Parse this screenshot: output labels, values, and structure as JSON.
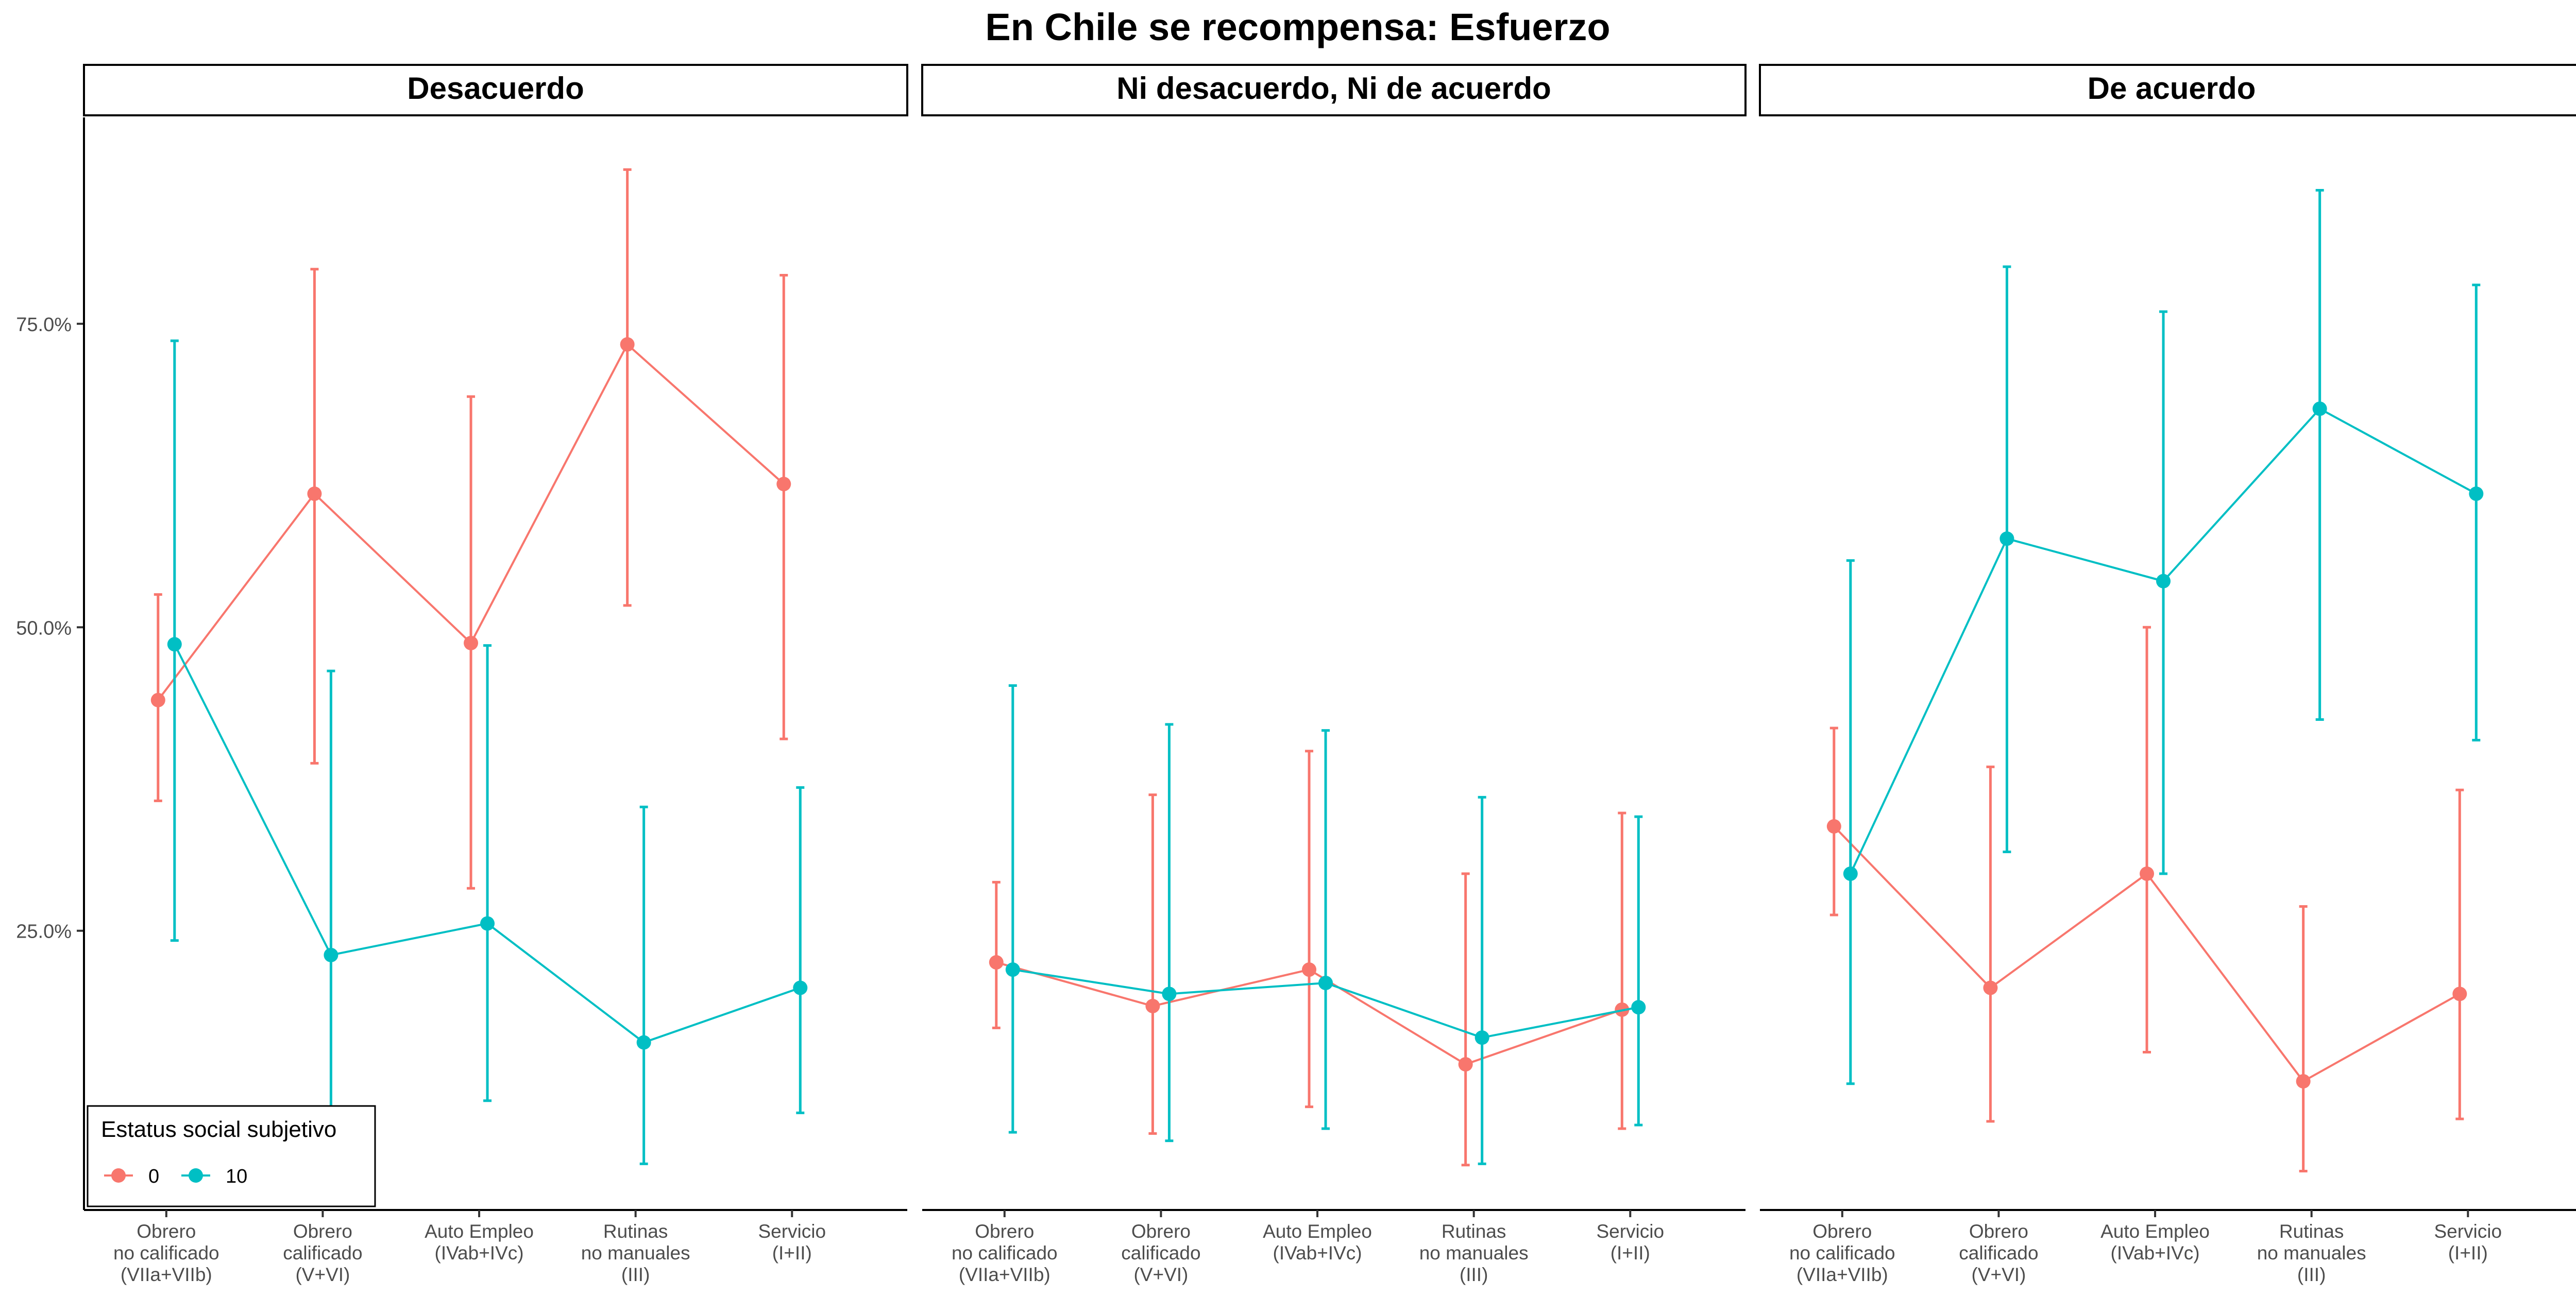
{
  "chart_data": {
    "type": "line",
    "title": "En Chile se recompensa: Esfuerzo",
    "facets": [
      "Desacuerdo",
      "Ni desacuerdo, Ni de acuerdo",
      "De acuerdo"
    ],
    "categories": [
      [
        "Obrero",
        "no calificado",
        "(VIIa+VIIb)"
      ],
      [
        "Obrero",
        "calificado",
        "(V+VI)"
      ],
      [
        "Auto Empleo",
        "(IVab+IVc)"
      ],
      [
        "Rutinas",
        "no manuales",
        "(III)"
      ],
      [
        "Servicio",
        "(I+II)"
      ]
    ],
    "y_ticks": [
      0.25,
      0.5,
      0.75
    ],
    "y_tick_labels": [
      "25.0%",
      "50.0%",
      "75.0%"
    ],
    "ylim": [
      0.02,
      0.92
    ],
    "grid": false,
    "legend": {
      "title": "Estatus social subjetivo",
      "position": "bottom-left",
      "entries": [
        "0",
        "10"
      ]
    },
    "series": [
      {
        "name": "0",
        "color": "#F8766D",
        "panels": [
          {
            "values": [
              0.44,
              0.61,
              0.487,
              0.733,
              0.618
            ],
            "lower": [
              0.357,
              0.388,
              0.285,
              0.518,
              0.408
            ],
            "upper": [
              0.527,
              0.795,
              0.69,
              0.877,
              0.79
            ]
          },
          {
            "values": [
              0.224,
              0.188,
              0.218,
              0.14,
              0.185
            ],
            "lower": [
              0.17,
              0.083,
              0.105,
              0.057,
              0.087
            ],
            "upper": [
              0.29,
              0.362,
              0.398,
              0.297,
              0.347
            ]
          },
          {
            "values": [
              0.336,
              0.203,
              0.297,
              0.126,
              0.198
            ],
            "lower": [
              0.263,
              0.093,
              0.15,
              0.052,
              0.095
            ],
            "upper": [
              0.417,
              0.385,
              0.5,
              0.27,
              0.366
            ]
          }
        ]
      },
      {
        "name": "10",
        "color": "#00BFC4",
        "panels": [
          {
            "values": [
              0.486,
              0.23,
              0.256,
              0.158,
              0.203
            ],
            "lower": [
              0.242,
              0.089,
              0.11,
              0.058,
              0.1
            ],
            "upper": [
              0.736,
              0.464,
              0.485,
              0.352,
              0.368
            ]
          },
          {
            "values": [
              0.218,
              0.198,
              0.207,
              0.162,
              0.187
            ],
            "lower": [
              0.084,
              0.077,
              0.087,
              0.058,
              0.09
            ],
            "upper": [
              0.452,
              0.42,
              0.415,
              0.36,
              0.344
            ]
          },
          {
            "values": [
              0.297,
              0.573,
              0.538,
              0.68,
              0.61
            ],
            "lower": [
              0.124,
              0.315,
              0.297,
              0.424,
              0.407
            ],
            "upper": [
              0.555,
              0.797,
              0.76,
              0.86,
              0.782
            ]
          }
        ]
      }
    ]
  }
}
